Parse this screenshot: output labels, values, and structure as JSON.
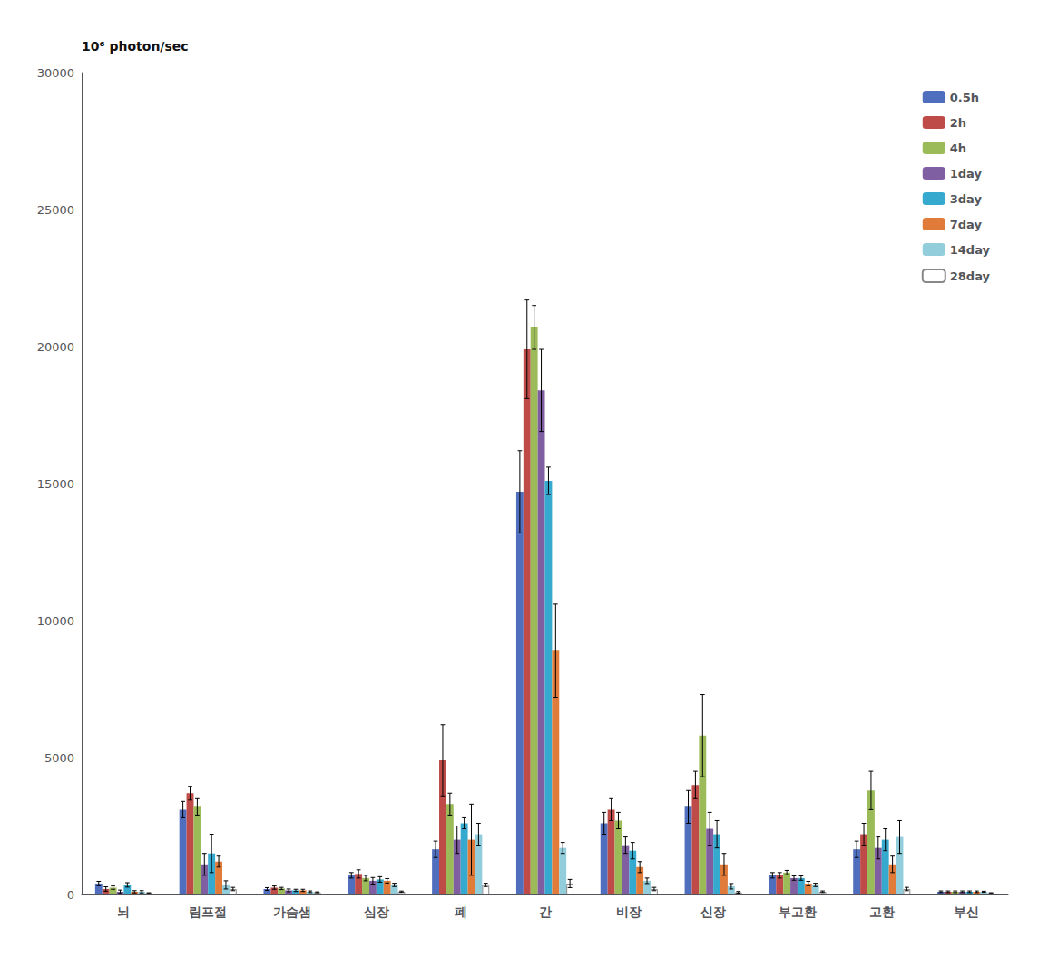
{
  "chart_data": {
    "type": "bar",
    "ylabel": "10⁶ photon/sec",
    "categories": [
      "뇌",
      "림프절",
      "가슴샘",
      "심장",
      "폐",
      "간",
      "비장",
      "신장",
      "부고환",
      "고환",
      "부신"
    ],
    "series": [
      {
        "name": "0.5h",
        "color": "#4F6EBD",
        "values": [
          400,
          3100,
          200,
          700,
          1650,
          14700,
          2600,
          3200,
          700,
          1650,
          100
        ],
        "errors": [
          80,
          300,
          50,
          100,
          300,
          1500,
          400,
          600,
          100,
          300,
          30
        ]
      },
      {
        "name": "2h",
        "color": "#BE4B48",
        "values": [
          200,
          3700,
          250,
          750,
          4900,
          19900,
          3100,
          4000,
          700,
          2200,
          100
        ],
        "errors": [
          80,
          250,
          60,
          150,
          1300,
          1800,
          400,
          500,
          100,
          400,
          30
        ]
      },
      {
        "name": "4h",
        "color": "#9BBB59",
        "values": [
          250,
          3200,
          220,
          600,
          3300,
          20700,
          2700,
          5800,
          800,
          3800,
          100
        ],
        "errors": [
          60,
          300,
          40,
          100,
          400,
          800,
          300,
          1500,
          80,
          700,
          30
        ]
      },
      {
        "name": "1day",
        "color": "#7F5FA2",
        "values": [
          100,
          1100,
          150,
          500,
          2000,
          18400,
          1800,
          2400,
          600,
          1700,
          100
        ],
        "errors": [
          60,
          400,
          50,
          120,
          500,
          1500,
          300,
          600,
          80,
          400,
          30
        ]
      },
      {
        "name": "3day",
        "color": "#36A9CE",
        "values": [
          350,
          1500,
          150,
          550,
          2600,
          15100,
          1600,
          2200,
          600,
          2000,
          100
        ],
        "errors": [
          80,
          700,
          40,
          100,
          200,
          500,
          300,
          500,
          80,
          400,
          30
        ]
      },
      {
        "name": "7day",
        "color": "#E07B39",
        "values": [
          100,
          1200,
          150,
          500,
          2000,
          8900,
          1000,
          1100,
          400,
          1100,
          100
        ],
        "errors": [
          40,
          200,
          40,
          80,
          1300,
          1700,
          200,
          400,
          80,
          300,
          30
        ]
      },
      {
        "name": "14day",
        "color": "#92CDDC",
        "values": [
          100,
          350,
          100,
          350,
          2200,
          1700,
          500,
          300,
          350,
          2100,
          100
        ],
        "errors": [
          40,
          150,
          30,
          60,
          400,
          200,
          100,
          100,
          60,
          600,
          20
        ]
      },
      {
        "name": "28day",
        "color": "#FFFFFF",
        "values": [
          50,
          200,
          80,
          100,
          350,
          400,
          200,
          80,
          100,
          200,
          50
        ],
        "errors": [
          15,
          60,
          15,
          25,
          60,
          150,
          60,
          30,
          30,
          60,
          15
        ]
      }
    ],
    "ylim": [
      0,
      30000
    ],
    "yticks": [
      0,
      5000,
      10000,
      15000,
      20000,
      25000,
      30000
    ],
    "grid": true,
    "legend": "upper right"
  }
}
